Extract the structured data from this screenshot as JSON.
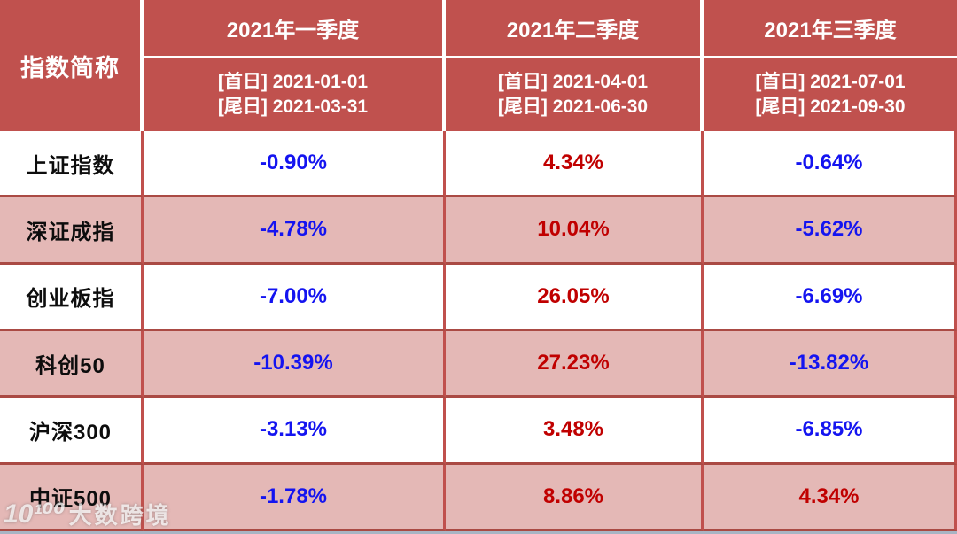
{
  "colors": {
    "header_bg": "#C0514E",
    "pink_row": "#E4B8B6",
    "border_red": "#C0504D",
    "border_dark": "#AA4A44",
    "value_blue": "#1414F0",
    "value_red": "#C00000",
    "bottom_strip": "#A9B4C4"
  },
  "header": {
    "index_label": "指数简称",
    "quarters": [
      {
        "title": "2021年一季度",
        "first_day": "[首日] 2021-01-01",
        "last_day": "[尾日] 2021-03-31"
      },
      {
        "title": "2021年二季度",
        "first_day": "[首日] 2021-04-01",
        "last_day": "[尾日] 2021-06-30"
      },
      {
        "title": "2021年三季度",
        "first_day": "[首日] 2021-07-01",
        "last_day": "[尾日] 2021-09-30"
      }
    ]
  },
  "rows": [
    {
      "index": "上证指数",
      "values": [
        "-0.90%",
        "4.34%",
        "-0.64%"
      ]
    },
    {
      "index": "深证成指",
      "values": [
        "-4.78%",
        "10.04%",
        "-5.62%"
      ]
    },
    {
      "index": "创业板指",
      "values": [
        "-7.00%",
        "26.05%",
        "-6.69%"
      ]
    },
    {
      "index": "科创50",
      "values": [
        "-10.39%",
        "27.23%",
        "-13.82%"
      ]
    },
    {
      "index": "沪深300",
      "values": [
        "-3.13%",
        "3.48%",
        "-6.85%"
      ]
    },
    {
      "index": "中证500",
      "values": [
        "-1.78%",
        "8.86%",
        "4.34%"
      ]
    }
  ],
  "watermark": {
    "logo": "10¹⁰⁰",
    "text": "大数跨境"
  },
  "chart_data": {
    "type": "table",
    "columns": [
      "指数简称",
      "2021年一季度 [首日]2021-01-01 [尾日]2021-03-31",
      "2021年二季度 [首日]2021-04-01 [尾日]2021-06-30",
      "2021年三季度 [首日]2021-07-01 [尾日]2021-09-30"
    ],
    "rows": [
      [
        "上证指数",
        "-0.90%",
        "4.34%",
        "-0.64%"
      ],
      [
        "深证成指",
        "-4.78%",
        "10.04%",
        "-5.62%"
      ],
      [
        "创业板指",
        "-7.00%",
        "26.05%",
        "-6.69%"
      ],
      [
        "科创50",
        "-10.39%",
        "27.23%",
        "-13.82%"
      ],
      [
        "沪深300",
        "-3.13%",
        "3.48%",
        "-6.85%"
      ],
      [
        "中证500",
        "-1.78%",
        "8.86%",
        "4.34%"
      ]
    ],
    "notes": "负值为蓝色，正值为红色；行背景白色与粉色交替"
  }
}
